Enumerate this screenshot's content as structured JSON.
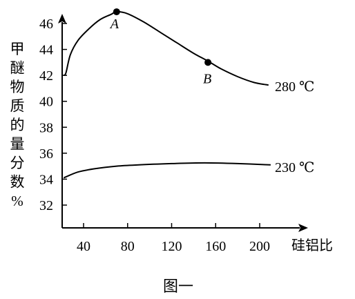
{
  "chart_data": {
    "type": "line",
    "caption": "图一",
    "xlabel": "硅铝比",
    "ylabel": "甲醚物质的量分数%",
    "ylabel_chars": [
      "甲",
      "醚",
      "物",
      "质",
      "的",
      "量",
      "分",
      "数",
      "%"
    ],
    "xlim": [
      20,
      222
    ],
    "ylim": [
      29.5,
      48
    ],
    "x_ticks": [
      40,
      80,
      120,
      160,
      200
    ],
    "y_ticks": [
      32,
      34,
      36,
      38,
      40,
      42,
      44,
      46
    ],
    "grid": false,
    "series": [
      {
        "name": "280 ℃",
        "points": [
          [
            22,
            42
          ],
          [
            24,
            42.2
          ],
          [
            28,
            43.6
          ],
          [
            35,
            44.7
          ],
          [
            45,
            45.6
          ],
          [
            55,
            46.3
          ],
          [
            65,
            46.7
          ],
          [
            70,
            46.9
          ],
          [
            80,
            46.75
          ],
          [
            95,
            46.1
          ],
          [
            110,
            45.3
          ],
          [
            125,
            44.5
          ],
          [
            140,
            43.7
          ],
          [
            153,
            43.1
          ],
          [
            165,
            42.5
          ],
          [
            180,
            41.9
          ],
          [
            195,
            41.45
          ],
          [
            208,
            41.25
          ]
        ]
      },
      {
        "name": "230 ℃",
        "points": [
          [
            22,
            34.1
          ],
          [
            35,
            34.55
          ],
          [
            50,
            34.8
          ],
          [
            70,
            35.0
          ],
          [
            90,
            35.1
          ],
          [
            120,
            35.2
          ],
          [
            150,
            35.25
          ],
          [
            180,
            35.2
          ],
          [
            210,
            35.1
          ]
        ]
      }
    ],
    "annotations": [
      {
        "label": "A",
        "x": 70,
        "y": 46.9
      },
      {
        "label": "B",
        "x": 153,
        "y": 43.0
      }
    ]
  }
}
